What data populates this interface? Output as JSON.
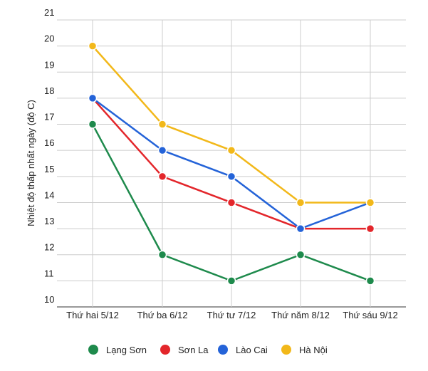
{
  "chart_data": {
    "type": "line",
    "title": "",
    "xlabel": "",
    "ylabel": "Nhiệt độ thấp nhất ngày (độ C)",
    "categories": [
      "Thứ hai 5/12",
      "Thứ ba 6/12",
      "Thứ tư 7/12",
      "Thứ năm 8/12",
      "Thứ sáu 9/12"
    ],
    "y_ticks": [
      10,
      11,
      12,
      13,
      14,
      15,
      16,
      17,
      18,
      19,
      20,
      21
    ],
    "ylim": [
      10,
      21
    ],
    "grid": true,
    "legend_position": "bottom",
    "series": [
      {
        "name": "Lạng Sơn",
        "color": "#1e8a4c",
        "values": [
          17,
          12,
          11,
          12,
          11
        ]
      },
      {
        "name": "Sơn La",
        "color": "#e3262b",
        "values": [
          18,
          15,
          14,
          13,
          13
        ]
      },
      {
        "name": "Lào Cai",
        "color": "#2463d8",
        "values": [
          18,
          16,
          15,
          13,
          14
        ]
      },
      {
        "name": "Hà Nội",
        "color": "#f2b81a",
        "values": [
          20,
          17,
          16,
          14,
          14
        ]
      }
    ]
  }
}
